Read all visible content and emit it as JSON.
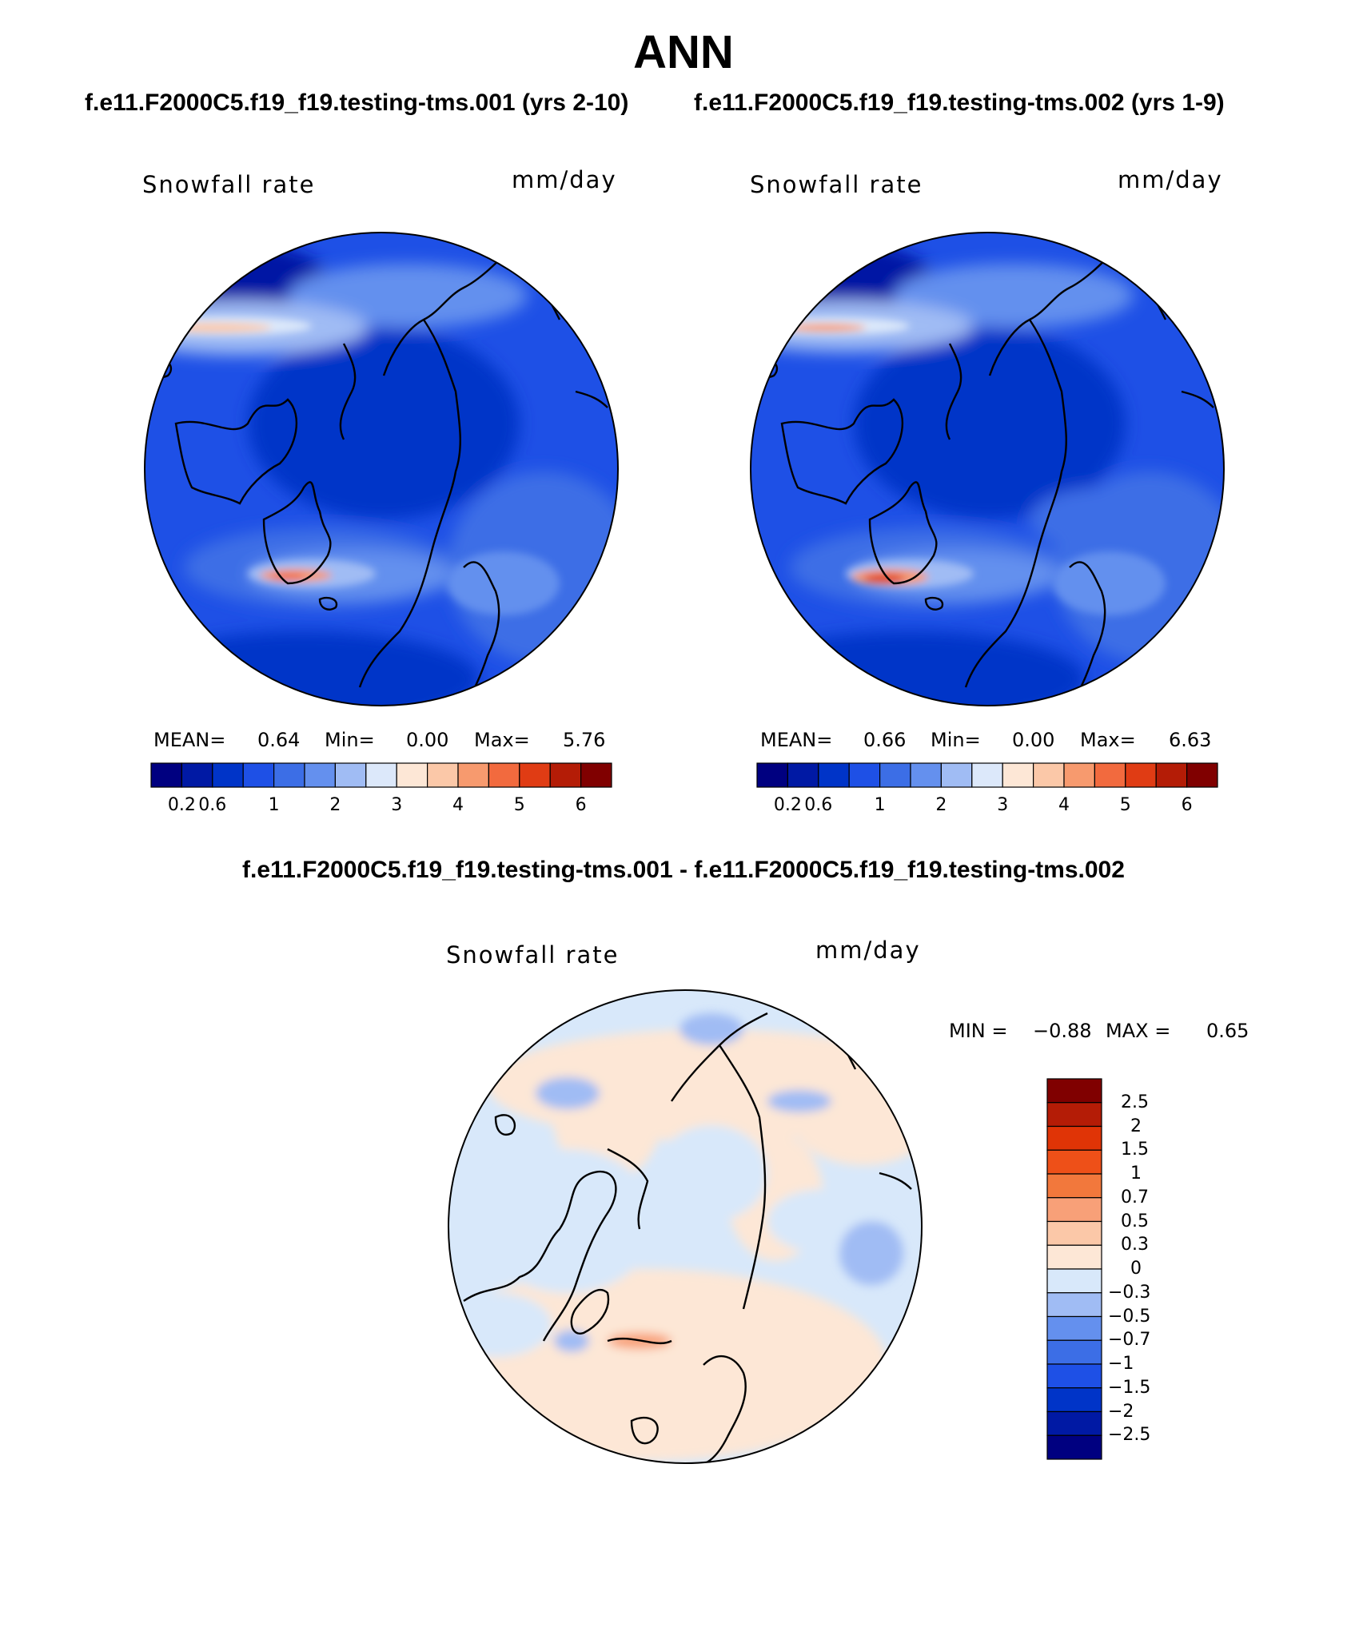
{
  "page": {
    "title": "ANN",
    "case1_title": "f.e11.F2000C5.f19_f19.testing-tms.001 (yrs 2-10)",
    "case2_title": "f.e11.F2000C5.f19_f19.testing-tms.002 (yrs 1-9)",
    "diff_title": "f.e11.F2000C5.f19_f19.testing-tms.001 - f.e11.F2000C5.f19_f19.testing-tms.002"
  },
  "colors": {
    "background": "#ffffff",
    "abs_scale": [
      "#000080",
      "#0019a4",
      "#0034c8",
      "#1e50e6",
      "#3c6ee6",
      "#6490ee",
      "#a0bcf4",
      "#dce8fa",
      "#fde7d6",
      "#fbc8a8",
      "#f79a6e",
      "#f26a3e",
      "#e03c14",
      "#b41c06",
      "#800000"
    ],
    "diff_scale": [
      "#000080",
      "#0019a4",
      "#0034c8",
      "#1e50e6",
      "#3c6ee6",
      "#6490ee",
      "#a0bcf4",
      "#d8e8fa",
      "#fde7d6",
      "#fbc8a8",
      "#f8a078",
      "#f2783c",
      "#ee5018",
      "#e03406",
      "#b41c06",
      "#800000"
    ]
  },
  "map_left": {
    "variable": "Snowfall rate",
    "units": "mm/day",
    "mean_label": "MEAN=",
    "mean_value": "0.64",
    "min_label": "Min=",
    "min_value": "0.00",
    "max_label": "Max=",
    "max_value": "5.76"
  },
  "map_right": {
    "variable": "Snowfall rate",
    "units": "mm/day",
    "mean_label": "MEAN=",
    "mean_value": "0.66",
    "min_label": "Min=",
    "min_value": "0.00",
    "max_label": "Max=",
    "max_value": "6.63"
  },
  "map_diff": {
    "variable": "Snowfall rate",
    "units": "mm/day",
    "min_label": "MIN =",
    "min_value": "−0.88",
    "max_label": "MAX =",
    "max_value": "0.65"
  },
  "colorbar_abs": {
    "ticks": [
      "0.2",
      "0.6",
      "1",
      "2",
      "3",
      "4",
      "5",
      "6"
    ],
    "tick_boundary_index": [
      1,
      2,
      4,
      6,
      8,
      10,
      12,
      14
    ]
  },
  "colorbar_diff": {
    "labels_top_to_bottom": [
      "2.5",
      "2",
      "1.5",
      "1",
      "0.7",
      "0.5",
      "0.3",
      "0",
      "−0.3",
      "−0.5",
      "−0.7",
      "−1",
      "−1.5",
      "−2",
      "−2.5"
    ]
  }
}
